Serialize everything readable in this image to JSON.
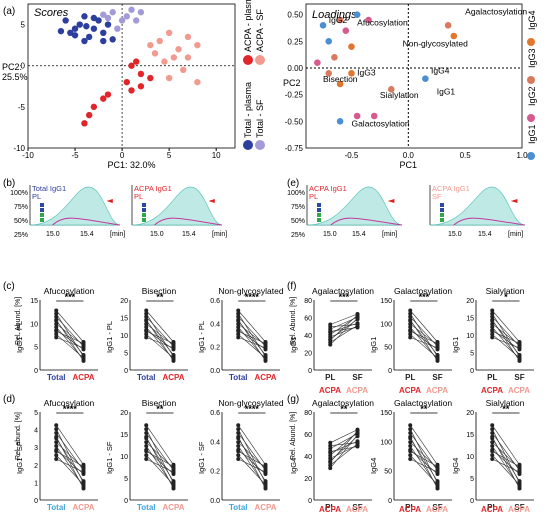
{
  "panels": {
    "a": {
      "letter": "(a)",
      "title": "Scores",
      "xlabel": "PC1: 32.0%",
      "ylabel": "PC2:\n25.5%",
      "xticks": [
        "-10",
        "-5",
        "0",
        "5",
        "10"
      ],
      "yticks": [
        "5",
        "0",
        "-5",
        "-10"
      ],
      "legend": {
        "total_plasma": "Total - plasma",
        "total_sf": "Total - SF",
        "acpa_plasma": "ACPA - plasma",
        "acpa_sf": "ACPA - SF"
      },
      "colors": {
        "total_plasma": "#2c3e9e",
        "total_sf": "#a39ad8",
        "acpa_plasma": "#e0262a",
        "acpa_sf": "#f29a90"
      }
    },
    "loadings": {
      "title": "Loadings",
      "xlabel": "PC1",
      "ylabel": "PC2",
      "xticks": [
        "-1.0",
        "-0.5",
        "0.0",
        "0.5",
        "1.0"
      ],
      "yticks": [
        "0.50",
        "0.25",
        "0.00",
        "-0.25",
        "-0.50",
        "-0.75"
      ],
      "labels": [
        "Agalactosylation",
        "Afucosylation",
        "IgG2",
        "Non-glycosylated",
        "IgG3",
        "IgG4",
        "IgG1",
        "Bisection",
        "Sialylation",
        "Galactosylation"
      ],
      "side": [
        "IgG4",
        "IgG3",
        "IgG2",
        "IgG1"
      ]
    },
    "b": {
      "letter": "(b)",
      "left_title": "Total IgG1",
      "left_sub": "PL",
      "right_title": "ACPA IgG1",
      "right_sub": "PL",
      "yticks": [
        "100%",
        "75%",
        "50%",
        "25%"
      ],
      "xticks": [
        "15.0",
        "15.4",
        "[min]"
      ]
    },
    "e": {
      "letter": "(e)",
      "left_title": "ACPA IgG1",
      "left_sub": "PL",
      "right_title": "ACPA IgG1",
      "right_sub": "SF",
      "yticks": [
        "100%",
        "75%",
        "50%",
        "25%"
      ],
      "xticks": [
        "15.0",
        "15.4",
        "[min]"
      ]
    },
    "c": {
      "letter": "(c)",
      "ylab": "Rel. Abund. [%]",
      "groups": [
        "Total",
        "ACPA"
      ],
      "plots": [
        {
          "title": "Afucosylation",
          "ylab": "IgG1 - PL",
          "sig": "***",
          "yt": [
            "15",
            "10",
            "5",
            "0"
          ]
        },
        {
          "title": "Bisection",
          "ylab": "IgG1 - PL",
          "sig": "**",
          "yt": [
            "20",
            "15",
            "10",
            "5",
            "0"
          ]
        },
        {
          "title": "Non-glycosylated",
          "ylab": "IgG1 - PL",
          "sig": "****",
          "yt": [
            "0.6",
            "0.4",
            "0.2",
            "0.0"
          ]
        }
      ]
    },
    "d": {
      "letter": "(d)",
      "ylab": "Rel. abund. [%]",
      "groups": [
        "Total",
        "ACPA"
      ],
      "plots": [
        {
          "title": "Afucosylation",
          "ylab": "IgG1 - SF",
          "sig": "****",
          "yt": [
            "5",
            "4",
            "3",
            "2",
            "1",
            "0"
          ]
        },
        {
          "title": "Bisection",
          "ylab": "IgG1 - SF",
          "sig": "**",
          "yt": [
            "20",
            "15",
            "10",
            "5",
            "0"
          ]
        },
        {
          "title": "Non-glycosylated",
          "ylab": "IgG1 - SF",
          "sig": "****",
          "yt": [
            "0.6",
            "0.4",
            "0.2",
            "0.0"
          ]
        }
      ]
    },
    "f": {
      "letter": "(f)",
      "ylab": "Rel. Abund. [%]",
      "groups": [
        "PL",
        "SF"
      ],
      "sub": "ACPA",
      "plots": [
        {
          "title": "Agalactosylation",
          "ylab": "IgG1",
          "sig": "***",
          "yt": [
            "80",
            "60",
            "40",
            "20",
            "0"
          ]
        },
        {
          "title": "Galactosylation",
          "ylab": "IgG1",
          "sig": "***",
          "yt": [
            "150",
            "100",
            "50",
            "0"
          ]
        },
        {
          "title": "Sialylation",
          "ylab": "IgG1",
          "sig": "*",
          "yt": [
            "20",
            "15",
            "10",
            "5",
            "0"
          ]
        }
      ]
    },
    "g": {
      "letter": "(g)",
      "ylab": "Rel. Abund. [%]",
      "groups": [
        "PL",
        "SF"
      ],
      "sub": "ACPA",
      "plots": [
        {
          "title": "Agalactosylation",
          "ylab": "IgG4",
          "sig": "**",
          "yt": [
            "80",
            "60",
            "40",
            "20",
            "0"
          ]
        },
        {
          "title": "Galactosylation",
          "ylab": "IgG4",
          "sig": "**",
          "yt": [
            "150",
            "100",
            "50",
            "0"
          ]
        },
        {
          "title": "Sialylation",
          "ylab": "IgG4",
          "sig": "**",
          "yt": [
            "20",
            "15",
            "10",
            "5",
            "0"
          ]
        }
      ]
    }
  }
}
